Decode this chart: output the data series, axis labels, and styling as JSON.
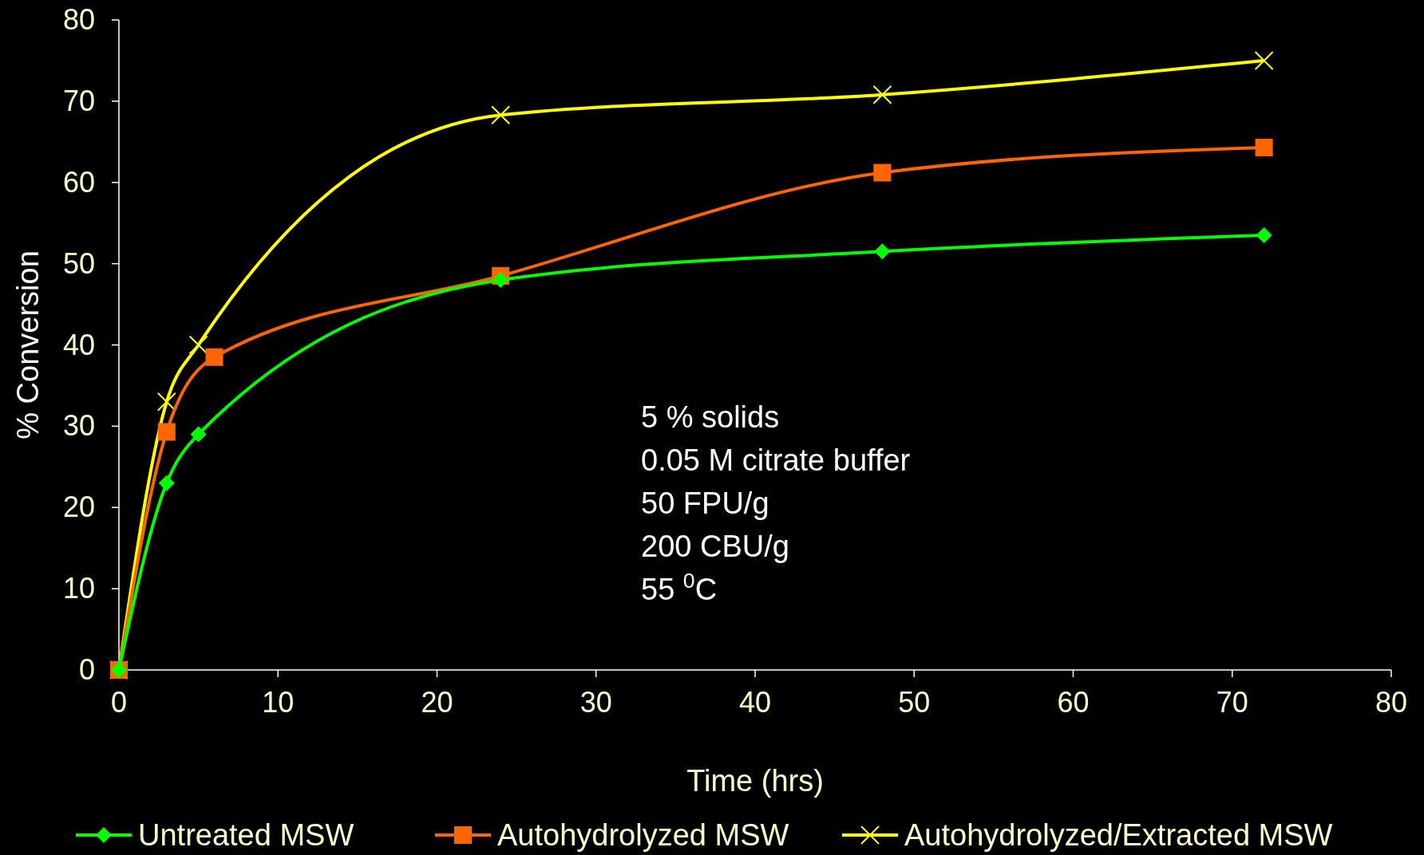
{
  "chart_data": {
    "type": "line",
    "xlabel": "Time (hrs)",
    "ylabel": "% Conversion",
    "xlim": [
      0,
      80
    ],
    "xticks": [
      0,
      10,
      20,
      30,
      40,
      50,
      60,
      70,
      80
    ],
    "ylim": [
      0,
      80
    ],
    "yticks": [
      0,
      10,
      20,
      30,
      40,
      50,
      60,
      70,
      80
    ],
    "grid": false,
    "legend": "bottom",
    "series": [
      {
        "name": "Untreated MSW",
        "color": "#00ff00",
        "marker": "diamond",
        "x": [
          0,
          3,
          5,
          24,
          48,
          72
        ],
        "values": [
          0,
          23,
          29,
          48,
          51.5,
          53.5
        ]
      },
      {
        "name": "Autohydrolyzed MSW",
        "color": "#ff6600",
        "marker": "square",
        "x": [
          0,
          3,
          6,
          24,
          48,
          72
        ],
        "values": [
          0,
          29.3,
          38.5,
          48.5,
          61.2,
          64.3
        ]
      },
      {
        "name": "Autohydrolyzed/Extracted MSW",
        "color": "#ffff00",
        "marker": "cross",
        "x": [
          0,
          3,
          5,
          24,
          48,
          72
        ],
        "values": [
          0,
          33,
          40,
          68.3,
          70.8,
          75
        ]
      }
    ],
    "annotations": [
      "5 % solids",
      "0.05 M citrate buffer",
      "50 FPU/g",
      "200 CBU/g",
      "55 $^{0}$C"
    ]
  }
}
